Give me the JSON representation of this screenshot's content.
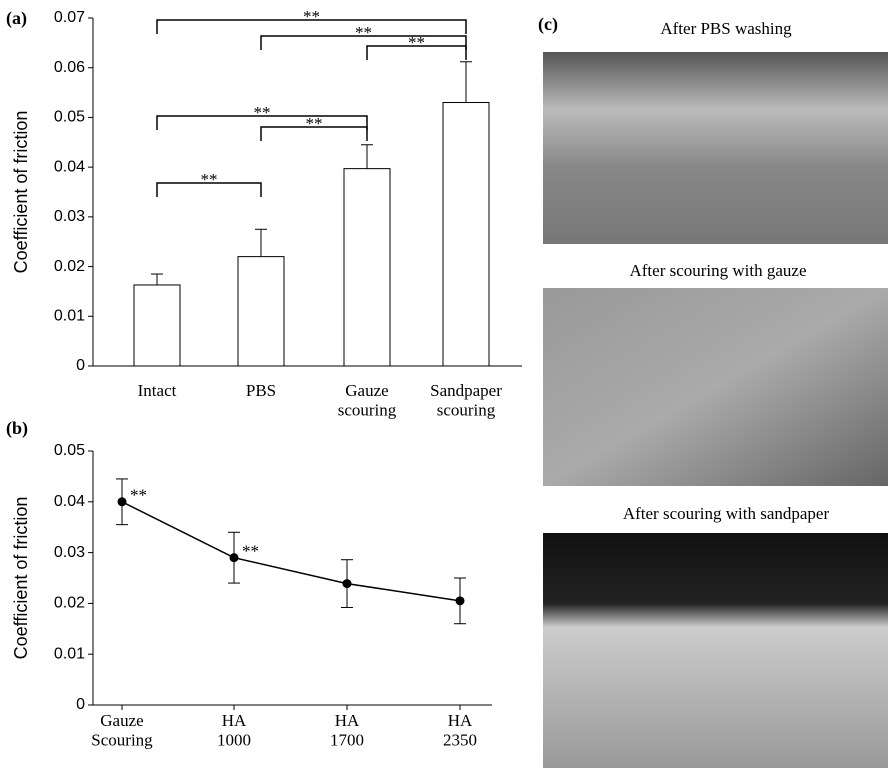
{
  "chart_data": [
    {
      "type": "bar",
      "panel_label": "(a)",
      "y_label": "Coefficient of friction",
      "categories": [
        "Intact",
        "PBS",
        "Gauze\nscouring",
        "Sandpaper\nscouring"
      ],
      "values": [
        0.0163,
        0.022,
        0.0397,
        0.053
      ],
      "errors": [
        0.0022,
        0.0055,
        0.0048,
        0.0082
      ],
      "color": "#ffffff",
      "ylim": [
        0,
        0.07
      ],
      "yticks": [
        0,
        0.01,
        0.02,
        0.03,
        0.04,
        0.05,
        0.06,
        0.07
      ],
      "significance": [
        {
          "from": 0,
          "to": 3,
          "label": "**"
        },
        {
          "from": 1,
          "to": 3,
          "label": "**"
        },
        {
          "from": 2,
          "to": 3,
          "label": "**"
        },
        {
          "from": 0,
          "to": 2,
          "label": "**"
        },
        {
          "from": 1,
          "to": 2,
          "label": "**"
        },
        {
          "from": 0,
          "to": 1,
          "label": "**"
        }
      ]
    },
    {
      "type": "line",
      "panel_label": "(b)",
      "y_label": "Coefficient of friction",
      "categories": [
        "Gauze\nScouring",
        "HA\n1000",
        "HA\n1700",
        "HA\n2350"
      ],
      "values": [
        0.04,
        0.029,
        0.0239,
        0.0205
      ],
      "errors": [
        0.0045,
        0.005,
        0.0047,
        0.0045
      ],
      "point_labels": [
        "**",
        "**",
        null,
        null
      ],
      "color": "#000000",
      "ylim": [
        0,
        0.05
      ],
      "yticks": [
        0,
        0.01,
        0.02,
        0.03,
        0.04,
        0.05
      ]
    }
  ],
  "panel_c": {
    "panel_label": "(c)",
    "captions": [
      "After PBS washing",
      "After scouring with gauze",
      "After scouring with sandpaper"
    ]
  }
}
